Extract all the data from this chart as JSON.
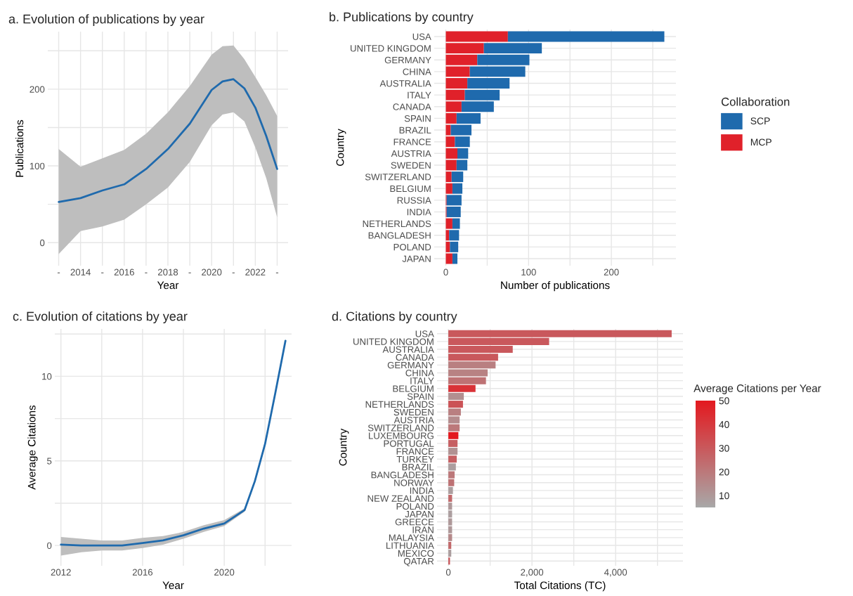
{
  "chart_data": [
    {
      "type": "line",
      "title": "a. Evolution of publications by year",
      "xlabel": "Year",
      "ylabel": "Publications",
      "series": [
        {
          "color": "#1f6aad",
          "x": [
            2013,
            2014,
            2015,
            2016,
            2017,
            2018,
            2019,
            2020,
            2020.5,
            2021,
            2021.5,
            2022,
            2022.5,
            2023
          ],
          "values": [
            53,
            58,
            68,
            76,
            96,
            122,
            155,
            199,
            210,
            213,
            201,
            176,
            139,
            96
          ],
          "lower": [
            -15,
            15,
            21,
            30,
            50,
            72,
            105,
            153,
            167,
            170,
            158,
            124,
            84,
            33
          ],
          "upper": [
            122,
            99,
            110,
            121,
            142,
            170,
            204,
            245,
            256,
            257,
            239,
            216,
            192,
            165
          ]
        }
      ],
      "xlim": [
        2012.5,
        2023.5
      ],
      "xticks": [
        {
          "value": 2013,
          "label": "-"
        },
        2014,
        {
          "value": 2015,
          "label": "-"
        },
        2016,
        {
          "value": 2017,
          "label": "-"
        },
        2018,
        {
          "value": 2019,
          "label": "-"
        },
        2020,
        {
          "value": 2021,
          "label": "-"
        },
        2022,
        {
          "value": 2023,
          "label": "-"
        }
      ],
      "ylim": [
        -30,
        275
      ],
      "yticks": [
        0,
        {
          "value": 50,
          "label": null
        },
        100,
        {
          "value": 150,
          "label": null
        },
        200,
        {
          "value": 250,
          "label": null
        }
      ],
      "grid": true
    },
    {
      "type": "bar",
      "orientation": "horizontal",
      "stacked": true,
      "title": "b. Publications by country",
      "xlabel": "Number of publications",
      "ylabel": "Country",
      "legend_title": "Collaboration",
      "legend": "right",
      "categories": [
        "USA",
        "UNITED KINGDOM",
        "GERMANY",
        "CHINA",
        "AUSTRALIA",
        "ITALY",
        "CANADA",
        "SPAIN",
        "BRAZIL",
        "FRANCE",
        "AUSTRIA",
        "SWEDEN",
        "SWITZERLAND",
        "BELGIUM",
        "RUSSIA",
        "INDIA",
        "NETHERLANDS",
        "BANGLADESH",
        "POLAND",
        "JAPAN"
      ],
      "series": [
        {
          "name": "MCP",
          "color": "#e0212a",
          "values": [
            75,
            46,
            38,
            29,
            26,
            23,
            19,
            13,
            6,
            11,
            14,
            13,
            7,
            8,
            1,
            1,
            8,
            4,
            5,
            8
          ]
        },
        {
          "name": "SCP",
          "color": "#1f6aad",
          "values": [
            189,
            70,
            63,
            67,
            51,
            42,
            39,
            29,
            25,
            18,
            13,
            13,
            14,
            12,
            18,
            17,
            9,
            12,
            10,
            6
          ]
        }
      ],
      "xlim": [
        -14,
        278
      ],
      "xticks": [
        0,
        {
          "value": 50,
          "label": null
        },
        100,
        {
          "value": 150,
          "label": null
        },
        200,
        {
          "value": 250,
          "label": null
        }
      ],
      "grid": true
    },
    {
      "type": "line",
      "title": "c. Evolution of citations by year",
      "xlabel": "Year",
      "ylabel": "Average Citations",
      "series": [
        {
          "color": "#1f6aad",
          "x": [
            2012,
            2013,
            2014,
            2015,
            2016,
            2017,
            2018,
            2019,
            2020,
            2021,
            2021.5,
            2022,
            2022.5,
            2023
          ],
          "values": [
            0.05,
            0,
            0,
            0,
            0.15,
            0.3,
            0.6,
            1.0,
            1.3,
            2.1,
            3.8,
            6.0,
            9.0,
            12.1
          ],
          "lower": [
            -0.6,
            -0.4,
            -0.3,
            -0.3,
            -0.15,
            0.05,
            0.4,
            0.8,
            1.15,
            2.0,
            3.7,
            5.9,
            8.9,
            12.0
          ],
          "upper": [
            0.5,
            0.4,
            0.3,
            0.3,
            0.45,
            0.55,
            0.8,
            1.2,
            1.5,
            2.2,
            3.9,
            6.1,
            9.1,
            12.2
          ]
        }
      ],
      "xlim": [
        2011.7,
        2023.3
      ],
      "xticks": [
        2012,
        {
          "value": 2014,
          "label": null
        },
        2016,
        {
          "value": 2018,
          "label": null
        },
        2020,
        {
          "value": 2022,
          "label": null
        }
      ],
      "ylim": [
        -1.2,
        12.8
      ],
      "yticks": [
        0,
        {
          "value": 2.5,
          "label": null
        },
        5,
        {
          "value": 7.5,
          "label": null
        },
        10,
        {
          "value": 12.5,
          "label": null
        }
      ],
      "grid": true
    },
    {
      "type": "bar",
      "orientation": "horizontal",
      "title": "d. Citations by country",
      "xlabel": "Total Citations (TC)",
      "ylabel": "Country",
      "clabel": "Average Citations per Year",
      "categories": [
        "USA",
        "UNITED KINGDOM",
        "AUSTRALIA",
        "CANADA",
        "GERMANY",
        "CHINA",
        "ITALY",
        "BELGIUM",
        "SPAIN",
        "NETHERLANDS",
        "SWEDEN",
        "AUSTRIA",
        "SWITZERLAND",
        "LUXEMBOURG",
        "PORTUGAL",
        "FRANCE",
        "TURKEY",
        "BRAZIL",
        "BANGLADESH",
        "NORWAY",
        "INDIA",
        "NEW ZEALAND",
        "POLAND",
        "JAPAN",
        "GREECE",
        "IRAN",
        "MALAYSIA",
        "LITHUANIA",
        "MEXICO",
        "QATAR"
      ],
      "values": [
        5340,
        2410,
        1540,
        1190,
        1130,
        940,
        900,
        650,
        370,
        350,
        300,
        270,
        270,
        240,
        220,
        220,
        200,
        180,
        150,
        140,
        110,
        90,
        90,
        90,
        90,
        90,
        90,
        70,
        70,
        40
      ],
      "cvalues": [
        30,
        30,
        30,
        30,
        18,
        17,
        22,
        42,
        13,
        32,
        18,
        14,
        20,
        50,
        28,
        12,
        28,
        8,
        20,
        22,
        8,
        25,
        10,
        8,
        10,
        10,
        15,
        25,
        8,
        30
      ],
      "clim": [
        5,
        50
      ],
      "cticks": [
        10,
        20,
        30,
        40,
        50
      ],
      "xlim": [
        -270,
        5610
      ],
      "xticks": [
        {
          "value": 0,
          "label": "0"
        },
        {
          "value": 1000,
          "label": null
        },
        {
          "value": 2000,
          "label": "2,000"
        },
        {
          "value": 3000,
          "label": null
        },
        {
          "value": 4000,
          "label": "4,000"
        },
        {
          "value": 5000,
          "label": null
        }
      ],
      "grid": true
    }
  ]
}
